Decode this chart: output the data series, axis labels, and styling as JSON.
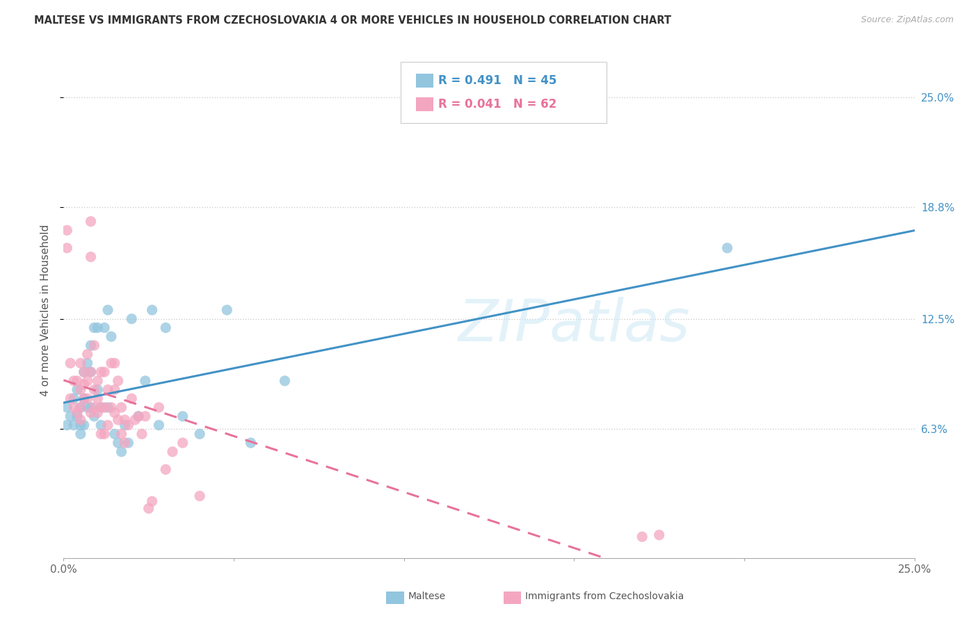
{
  "title": "MALTESE VS IMMIGRANTS FROM CZECHOSLOVAKIA 4 OR MORE VEHICLES IN HOUSEHOLD CORRELATION CHART",
  "source": "Source: ZipAtlas.com",
  "ylabel": "4 or more Vehicles in Household",
  "xlim": [
    0.0,
    0.25
  ],
  "ylim": [
    -0.01,
    0.27
  ],
  "ytick_labels_right": [
    "25.0%",
    "18.8%",
    "12.5%",
    "6.3%"
  ],
  "ytick_values_right": [
    0.25,
    0.188,
    0.125,
    0.063
  ],
  "maltese_color": "#92c5de",
  "czech_color": "#f4a6c0",
  "maltese_line_color": "#4292c6",
  "czech_line_color": "#e8729a",
  "watermark": "ZIPatlas",
  "maltese_R": 0.491,
  "maltese_N": 45,
  "czech_R": 0.041,
  "czech_N": 62,
  "grid_color": "#cccccc",
  "background_color": "#ffffff",
  "maltese_x": [
    0.001,
    0.001,
    0.002,
    0.003,
    0.003,
    0.004,
    0.004,
    0.005,
    0.005,
    0.005,
    0.006,
    0.006,
    0.006,
    0.007,
    0.007,
    0.008,
    0.008,
    0.008,
    0.009,
    0.009,
    0.01,
    0.01,
    0.011,
    0.011,
    0.012,
    0.013,
    0.013,
    0.014,
    0.015,
    0.016,
    0.017,
    0.018,
    0.019,
    0.02,
    0.022,
    0.024,
    0.026,
    0.028,
    0.03,
    0.035,
    0.04,
    0.048,
    0.055,
    0.065,
    0.195
  ],
  "maltese_y": [
    0.075,
    0.065,
    0.07,
    0.08,
    0.065,
    0.085,
    0.07,
    0.075,
    0.065,
    0.06,
    0.095,
    0.08,
    0.065,
    0.1,
    0.075,
    0.11,
    0.095,
    0.075,
    0.12,
    0.07,
    0.12,
    0.085,
    0.075,
    0.065,
    0.12,
    0.13,
    0.075,
    0.115,
    0.06,
    0.055,
    0.05,
    0.065,
    0.055,
    0.125,
    0.07,
    0.09,
    0.13,
    0.065,
    0.12,
    0.07,
    0.06,
    0.13,
    0.055,
    0.09,
    0.165
  ],
  "czech_x": [
    0.001,
    0.001,
    0.002,
    0.002,
    0.003,
    0.003,
    0.004,
    0.004,
    0.005,
    0.005,
    0.005,
    0.005,
    0.006,
    0.006,
    0.006,
    0.007,
    0.007,
    0.007,
    0.008,
    0.008,
    0.008,
    0.008,
    0.009,
    0.009,
    0.009,
    0.01,
    0.01,
    0.01,
    0.011,
    0.011,
    0.011,
    0.012,
    0.012,
    0.012,
    0.013,
    0.013,
    0.014,
    0.014,
    0.015,
    0.015,
    0.015,
    0.016,
    0.016,
    0.017,
    0.017,
    0.018,
    0.018,
    0.019,
    0.02,
    0.021,
    0.022,
    0.023,
    0.024,
    0.025,
    0.026,
    0.028,
    0.03,
    0.032,
    0.035,
    0.04,
    0.17,
    0.175
  ],
  "czech_y": [
    0.175,
    0.165,
    0.1,
    0.08,
    0.09,
    0.075,
    0.09,
    0.072,
    0.1,
    0.085,
    0.075,
    0.068,
    0.095,
    0.088,
    0.08,
    0.105,
    0.09,
    0.08,
    0.18,
    0.16,
    0.095,
    0.072,
    0.11,
    0.085,
    0.075,
    0.09,
    0.08,
    0.072,
    0.095,
    0.075,
    0.06,
    0.095,
    0.075,
    0.06,
    0.085,
    0.065,
    0.1,
    0.075,
    0.1,
    0.085,
    0.072,
    0.09,
    0.068,
    0.075,
    0.06,
    0.068,
    0.055,
    0.065,
    0.08,
    0.068,
    0.07,
    0.06,
    0.07,
    0.018,
    0.022,
    0.075,
    0.04,
    0.05,
    0.055,
    0.025,
    0.002,
    0.003
  ]
}
